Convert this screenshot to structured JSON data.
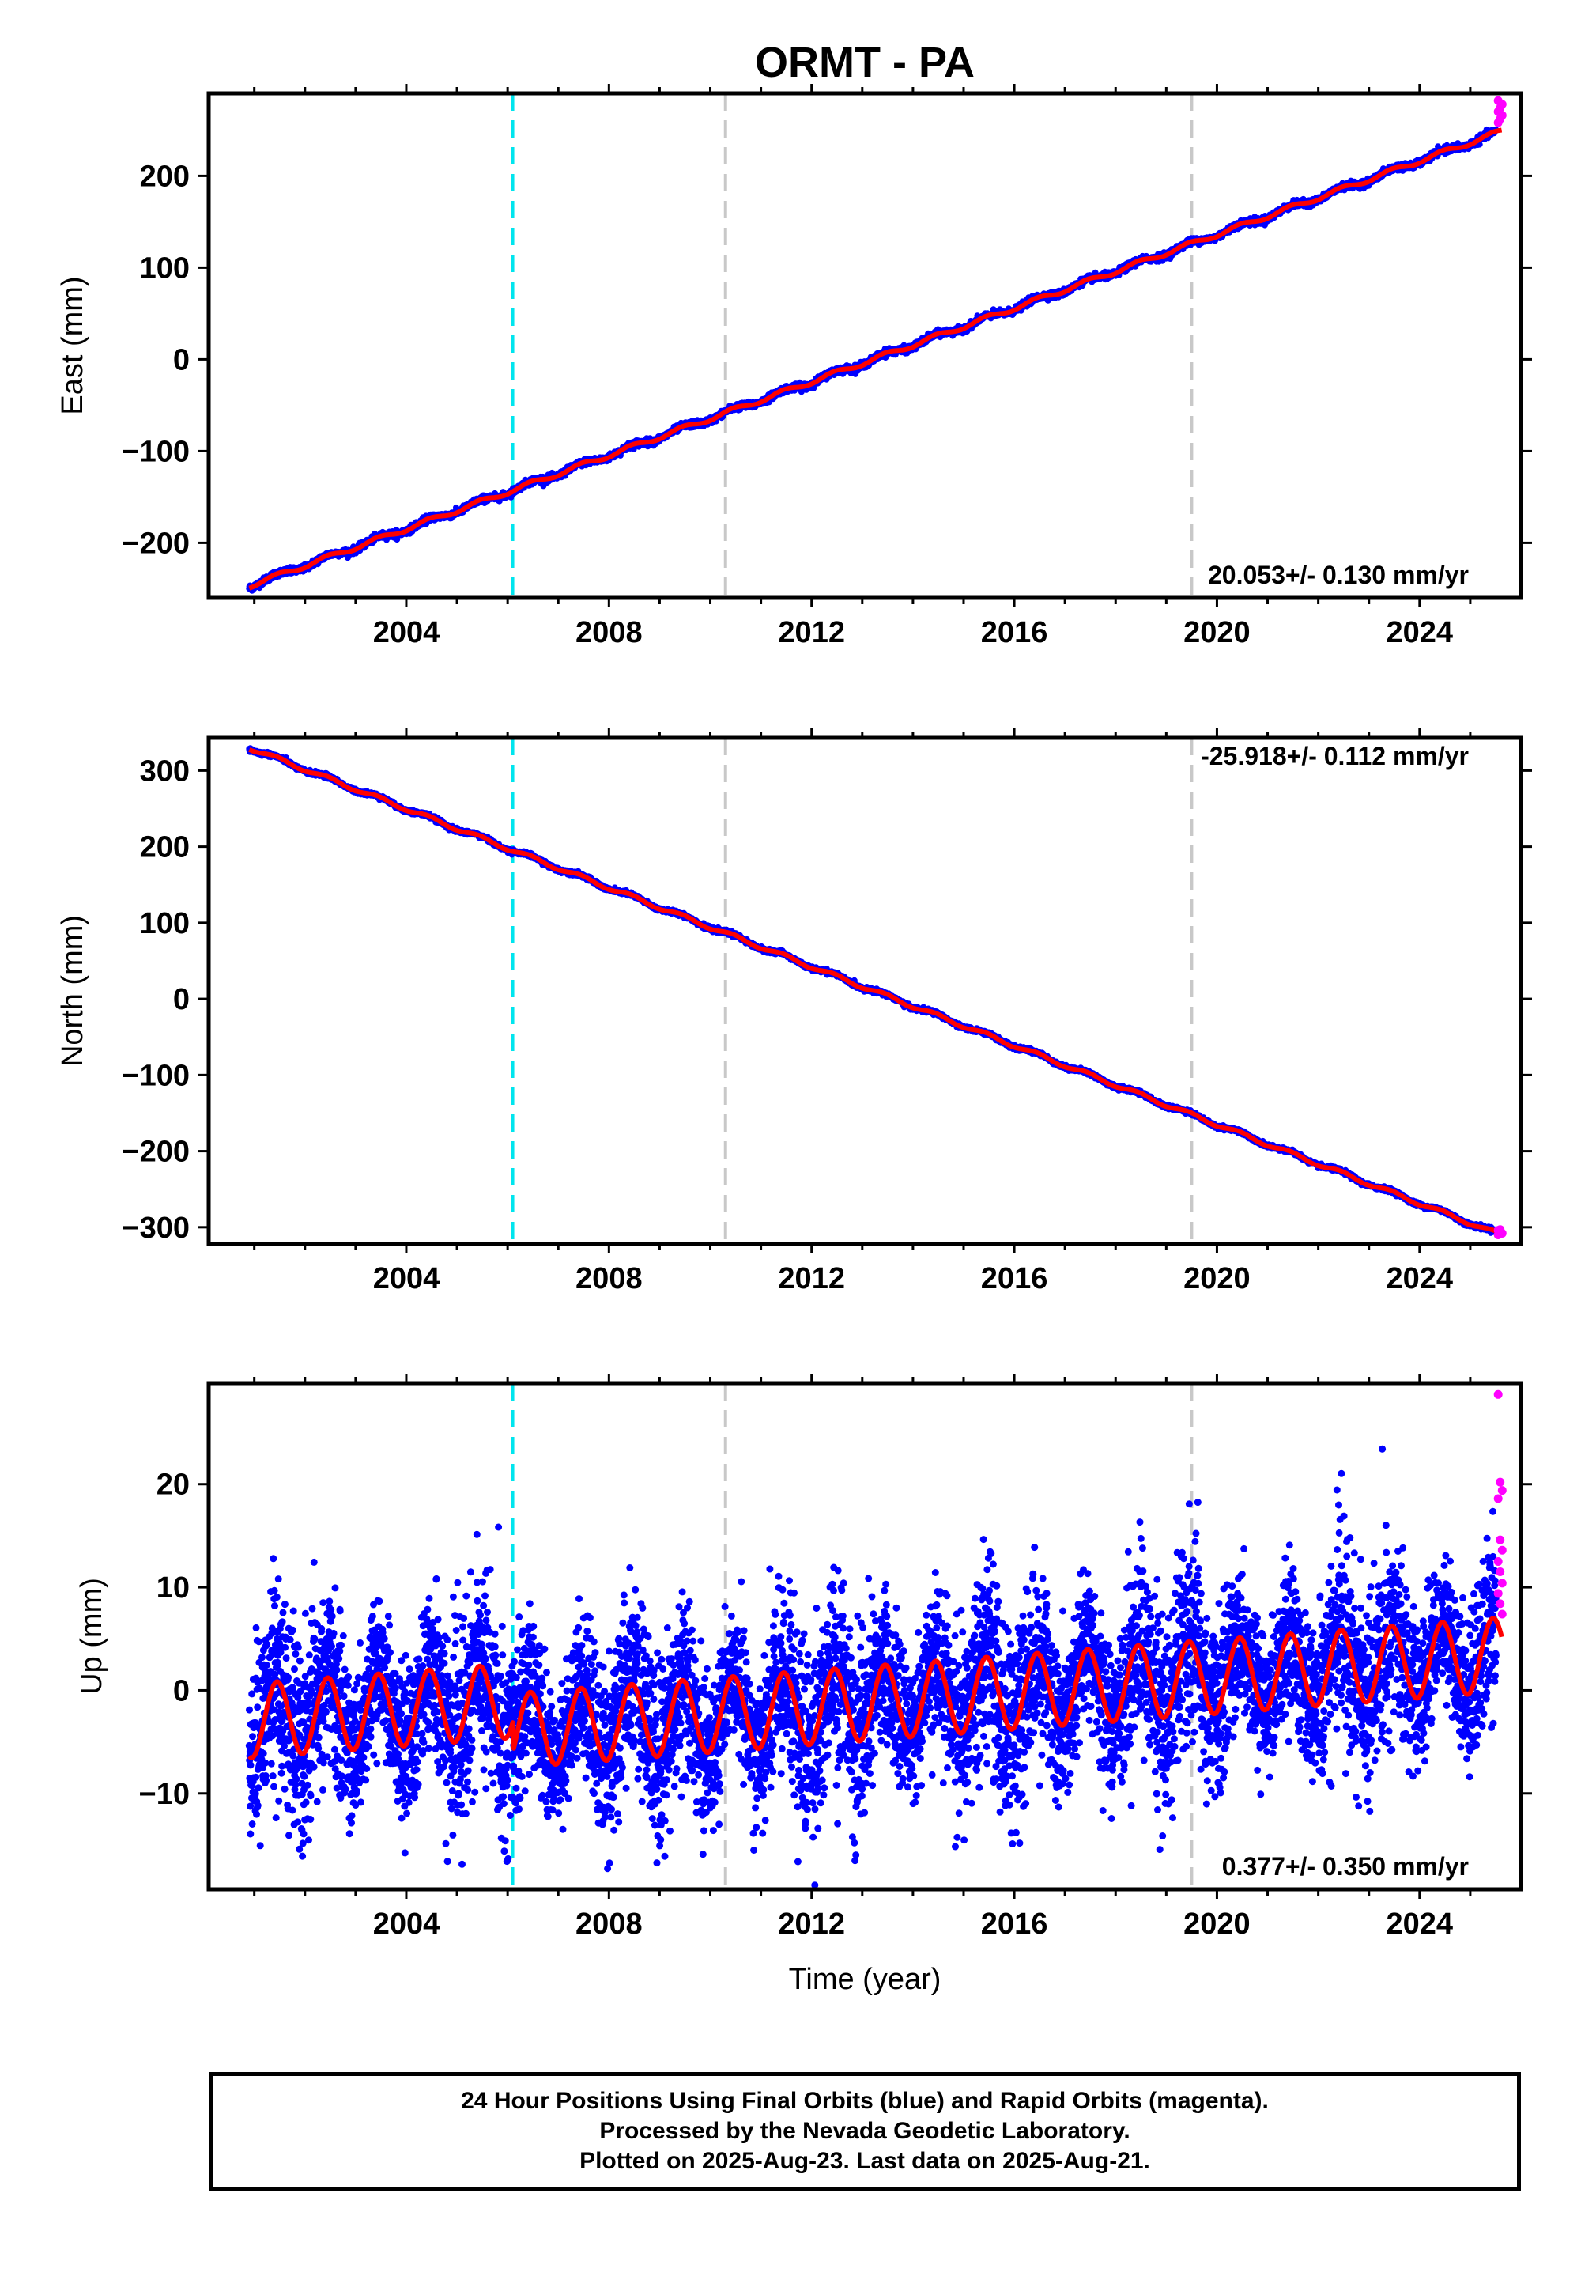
{
  "title": "ORMT - PA",
  "xlabel": "Time (year)",
  "colors": {
    "final_orbits": "#0000ff",
    "rapid_orbits": "#ff00ff",
    "model_fit": "#ff0000",
    "equipment_change_line": "#00e5ee",
    "other_offset_line": "#c8c8c8"
  },
  "vertical_lines": [
    {
      "x": 2006.1,
      "color": "cyan"
    },
    {
      "x": 2010.3,
      "color": "gray"
    },
    {
      "x": 2019.5,
      "color": "gray"
    }
  ],
  "footer": {
    "line1": "24 Hour Positions Using Final Orbits (blue) and Rapid Orbits (magenta).",
    "line2": "Processed by the Nevada Geodetic Laboratory.",
    "line3": "Plotted on 2025-Aug-23. Last data on 2025-Aug-21."
  },
  "chart_data": [
    {
      "type": "scatter",
      "component": "east",
      "ylabel": "East (mm)",
      "rate_label": "20.053+/- 0.130 mm/yr",
      "rate_position": "bottom-right",
      "xlim": [
        2000.1,
        2026.0
      ],
      "ylim": [
        -260,
        290
      ],
      "xticks": [
        2004,
        2008,
        2012,
        2016,
        2020,
        2024
      ],
      "yticks": [
        -200,
        -100,
        0,
        100,
        200
      ],
      "ytick_labels": [
        "−200",
        "−100",
        "0",
        "100",
        "200"
      ],
      "start_year": 2000.9,
      "end_year": 2025.63,
      "start_value": -247,
      "end_value": 261,
      "rate_mm_per_yr": 20.053,
      "seasonal_amplitude": 2.5,
      "scatter_noise": 4,
      "rapid_orbit_values": [
        258,
        262,
        266,
        270,
        274,
        278,
        282
      ]
    },
    {
      "type": "scatter",
      "component": "north",
      "ylabel": "North (mm)",
      "rate_label": "-25.918+/- 0.112 mm/yr",
      "rate_position": "top-right",
      "xlim": [
        2000.1,
        2026.0
      ],
      "ylim": [
        -322,
        343
      ],
      "xticks": [
        2004,
        2008,
        2012,
        2016,
        2020,
        2024
      ],
      "yticks": [
        -300,
        -200,
        -100,
        0,
        100,
        200,
        300
      ],
      "ytick_labels": [
        "−300",
        "−200",
        "−100",
        "0",
        "100",
        "200",
        "300"
      ],
      "start_year": 2000.9,
      "end_year": 2025.63,
      "start_value": 330,
      "end_value": -308,
      "rate_mm_per_yr": -25.918,
      "seasonal_amplitude": 2.5,
      "scatter_noise": 3,
      "rapid_orbit_values": [
        -304,
        -306,
        -308,
        -310,
        -303
      ]
    },
    {
      "type": "scatter",
      "component": "up",
      "ylabel": "Up (mm)",
      "rate_label": "0.377+/- 0.350 mm/yr",
      "rate_position": "bottom-right",
      "xlim": [
        2000.1,
        2026.0
      ],
      "ylim": [
        -19.3,
        29.8
      ],
      "xticks": [
        2004,
        2008,
        2012,
        2016,
        2020,
        2024
      ],
      "yticks": [
        -10,
        0,
        10,
        20
      ],
      "ytick_labels": [
        "−10",
        "0",
        "10",
        "20"
      ],
      "start_year": 2000.9,
      "end_year": 2025.63,
      "model_offset_before_2006": 1.6,
      "model_offset_after_2006": -1.3,
      "rate_mm_per_yr": 0.377,
      "seasonal_amplitude": 3.6,
      "scatter_noise": 4,
      "rapid_orbit_values": [
        28.7,
        20.2,
        19.4,
        18.6,
        14.6,
        13.6,
        12.5,
        11.5,
        10.4,
        9.4,
        8.4,
        7.4
      ]
    }
  ]
}
